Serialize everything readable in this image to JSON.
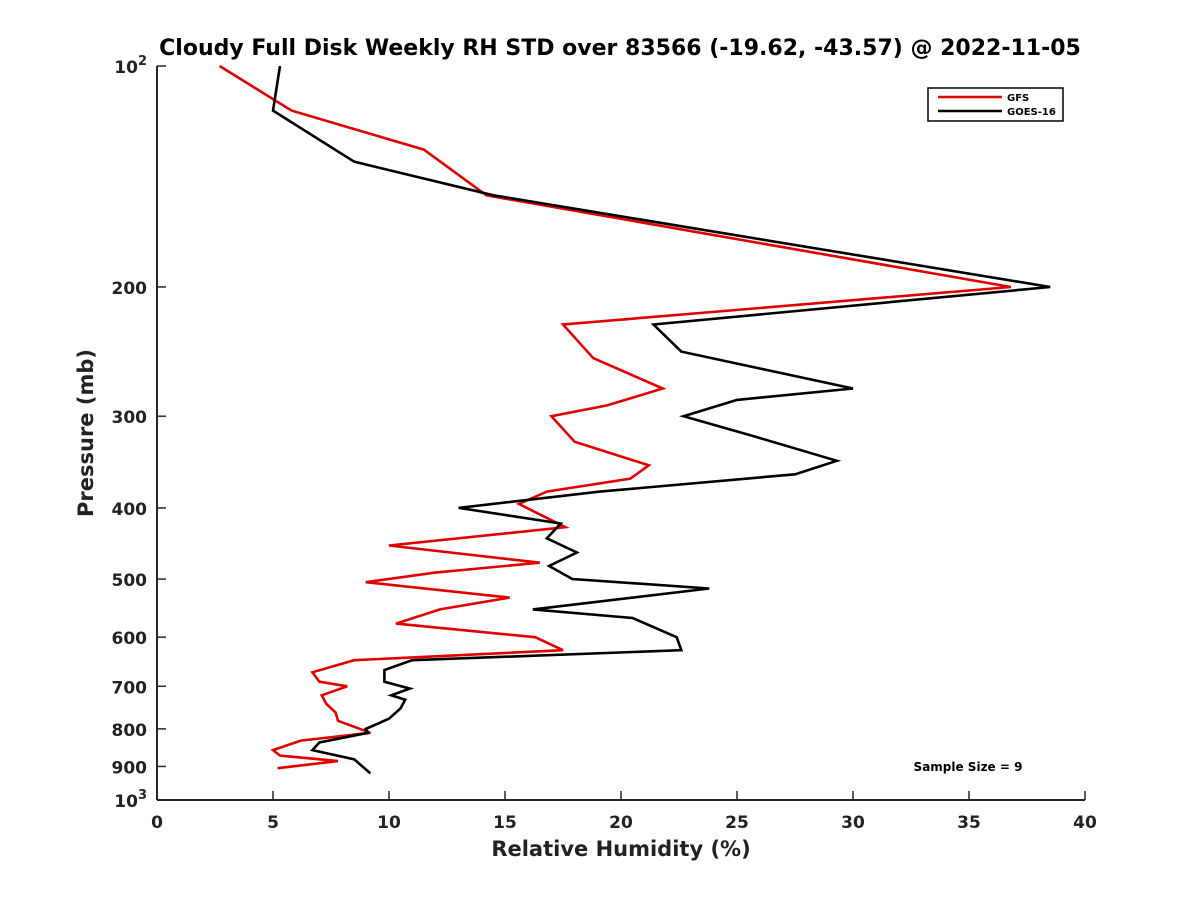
{
  "chart_data": {
    "type": "line",
    "title": "Cloudy Full Disk Weekly RH STD over 83566 (-19.62, -43.57) @ 2022-11-05",
    "xlabel": "Relative Humidity (%)",
    "ylabel": "Pressure (mb)",
    "xlim": [
      0,
      40
    ],
    "ylim": [
      100,
      1000
    ],
    "y_scale": "log",
    "y_reversed": true,
    "x_ticks": [
      0,
      5,
      10,
      15,
      20,
      25,
      30,
      35,
      40
    ],
    "y_ticks": [
      {
        "value": 100,
        "base": "10",
        "exp": "2"
      },
      {
        "value": 200,
        "label": "200"
      },
      {
        "value": 300,
        "label": "300"
      },
      {
        "value": 400,
        "label": "400"
      },
      {
        "value": 500,
        "label": "500"
      },
      {
        "value": 600,
        "label": "600"
      },
      {
        "value": 700,
        "label": "700"
      },
      {
        "value": 800,
        "label": "800"
      },
      {
        "value": 900,
        "label": "900"
      },
      {
        "value": 1000,
        "base": "10",
        "exp": "3"
      }
    ],
    "legend_position": "top-right",
    "series": [
      {
        "name": "GFS",
        "color": "#e00000",
        "rh": [
          2.7,
          5.8,
          11.5,
          14.2,
          36.8,
          17.5,
          18.8,
          21.8,
          19.4,
          17.0,
          18.0,
          21.2,
          20.4,
          16.8,
          15.6,
          17.6,
          10.0,
          16.5,
          12.0,
          9.0,
          15.2,
          12.2,
          10.3,
          16.3,
          17.5,
          8.5,
          6.7,
          7.0,
          8.2,
          7.1,
          7.3,
          7.7,
          7.8,
          9.2,
          6.2,
          5.0,
          5.3,
          7.8,
          5.2
        ],
        "pressure": [
          100,
          115,
          130,
          150,
          200,
          225,
          250,
          275,
          290,
          300,
          325,
          350,
          365,
          380,
          395,
          425,
          450,
          475,
          490,
          505,
          530,
          550,
          575,
          600,
          625,
          645,
          670,
          690,
          700,
          720,
          740,
          760,
          780,
          810,
          830,
          855,
          870,
          885,
          905
        ]
      },
      {
        "name": "GOES-16",
        "color": "#000000",
        "rh": [
          5.3,
          5.0,
          8.5,
          14.5,
          38.5,
          21.4,
          22.6,
          30.0,
          25.0,
          22.7,
          25.8,
          29.3,
          27.5,
          19.1,
          13.0,
          17.4,
          16.8,
          18.1,
          16.9,
          17.9,
          23.8,
          16.2,
          20.5,
          22.4,
          22.6,
          11.0,
          9.8,
          9.8,
          10.9,
          10.1,
          10.7,
          10.5,
          10.0,
          9.0,
          9.1,
          7.0,
          6.7,
          8.5,
          9.2
        ],
        "pressure": [
          100,
          115,
          135,
          150,
          200,
          225,
          245,
          275,
          285,
          300,
          320,
          345,
          360,
          380,
          400,
          420,
          440,
          460,
          480,
          500,
          515,
          550,
          565,
          600,
          625,
          645,
          665,
          690,
          705,
          720,
          730,
          750,
          775,
          800,
          810,
          835,
          855,
          880,
          920
        ]
      }
    ],
    "annotation": "Sample Size = 9"
  }
}
